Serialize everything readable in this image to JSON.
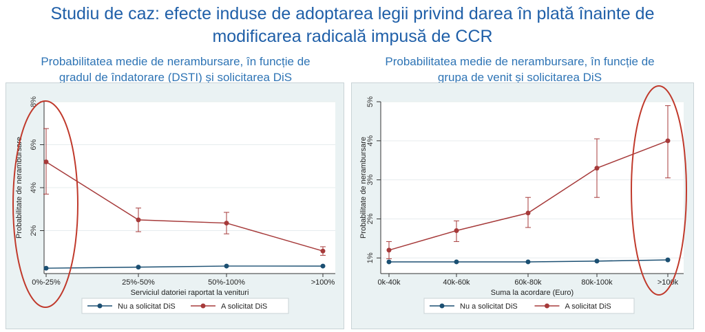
{
  "header": {
    "title_line1": "Studiu de caz: efecte induse de adoptarea legii privind darea în plată înainte de",
    "title_line2": "modificarea radicală impusă de CCR"
  },
  "colors": {
    "title": "#1f5fa8",
    "subtitle": "#2e74b5",
    "series_nu": "#1b4f72",
    "series_a": "#a63a3a",
    "highlight": "#c0392b",
    "panel_bg": "#eaf2f3"
  },
  "panels": [
    {
      "subtitle_line1": "Probabilitatea medie de nerambursare, în funcție de",
      "subtitle_line2_pre": "gradul de îndatorare (DSTI) și solicitarea ",
      "subtitle_line2_dis": "DiS"
    },
    {
      "subtitle_line1": "Probabilitatea medie de nerambursare, în funcție de",
      "subtitle_line2_pre": "grupa de venit și solicitarea ",
      "subtitle_line2_dis": "DiS"
    }
  ],
  "chart_data": [
    {
      "type": "line",
      "title": "Probabilitatea medie de nerambursare, în funcție de gradul de îndatorare (DSTI) și solicitarea DiS",
      "xlabel": "Serviciul datoriei raportat la venituri",
      "ylabel": "Probabilitate de nerambursare",
      "categories": [
        "0%-25%",
        "25%-50%",
        "50%-100%",
        ">100%"
      ],
      "yticks": [
        2,
        4,
        6,
        8
      ],
      "ytick_labels": [
        "2%",
        "4%",
        "6%",
        "8%"
      ],
      "ylim": [
        0,
        8
      ],
      "series": [
        {
          "name": "Nu a solicitat DiS",
          "values": [
            0.25,
            0.3,
            0.35,
            0.35
          ]
        },
        {
          "name": "A solicitat DiS",
          "values": [
            5.2,
            2.5,
            2.35,
            1.05
          ],
          "ci_low": [
            3.7,
            1.95,
            1.85,
            0.85
          ],
          "ci_high": [
            6.75,
            3.05,
            2.85,
            1.25
          ]
        }
      ],
      "legend_position": "bottom",
      "grid": true,
      "highlight_category": "0%-25%"
    },
    {
      "type": "line",
      "title": "Probabilitatea medie de nerambursare, în funcție de grupa de venit și solicitarea DiS",
      "xlabel": "Suma la acordare (Euro)",
      "ylabel": "Probabilitate de nerambursare",
      "categories": [
        "0k-40k",
        "40k-60k",
        "60k-80k",
        "80k-100k",
        ">100k"
      ],
      "yticks": [
        1,
        2,
        3,
        4,
        5
      ],
      "ytick_labels": [
        "1%",
        "2%",
        "3%",
        "4%",
        "5%"
      ],
      "ylim": [
        0.6,
        5
      ],
      "series": [
        {
          "name": "Nu a solicitat DiS",
          "values": [
            0.9,
            0.9,
            0.9,
            0.92,
            0.95
          ]
        },
        {
          "name": "A solicitat DiS",
          "values": [
            1.2,
            1.7,
            2.15,
            3.3,
            4.0
          ],
          "ci_low": [
            0.98,
            1.42,
            1.78,
            2.55,
            3.05
          ],
          "ci_high": [
            1.42,
            1.95,
            2.55,
            4.05,
            4.9
          ]
        }
      ],
      "legend_position": "bottom",
      "grid": true,
      "highlight_category": ">100k"
    }
  ]
}
